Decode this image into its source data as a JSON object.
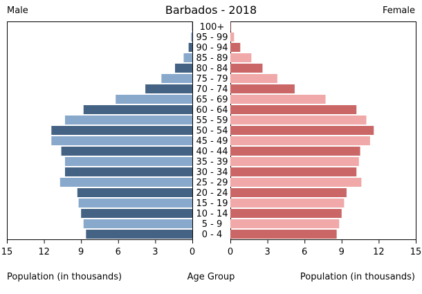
{
  "chart_data": {
    "type": "bar",
    "title": "Barbados - 2018",
    "left_label": "Male",
    "right_label": "Female",
    "xlabel_left": "Population (in thousands)",
    "xlabel_center": "Age Group",
    "xlabel_right": "Population (in thousands)",
    "xlim": [
      0,
      15
    ],
    "xticks": [
      0,
      3,
      6,
      9,
      12,
      15
    ],
    "categories": [
      "100+",
      "95 - 99",
      "90 - 94",
      "85 - 89",
      "80 - 84",
      "75 - 79",
      "70 - 74",
      "65 - 69",
      "60 - 64",
      "55 - 59",
      "50 - 54",
      "45 - 49",
      "40 - 44",
      "35 - 39",
      "30 - 34",
      "25 - 29",
      "20 - 24",
      "15 - 19",
      "10 - 14",
      "5 - 9",
      "0 - 4"
    ],
    "series": [
      {
        "name": "Male",
        "values": [
          0.02,
          0.1,
          0.3,
          0.7,
          1.4,
          2.5,
          3.8,
          6.2,
          8.8,
          10.3,
          11.4,
          11.4,
          10.6,
          10.3,
          10.3,
          10.7,
          9.3,
          9.2,
          9.0,
          8.8,
          8.6
        ]
      },
      {
        "name": "Female",
        "values": [
          0.03,
          0.3,
          0.8,
          1.7,
          2.6,
          3.8,
          5.2,
          7.7,
          10.2,
          11.0,
          11.6,
          11.3,
          10.5,
          10.4,
          10.2,
          10.6,
          9.4,
          9.2,
          9.0,
          8.8,
          8.6
        ]
      }
    ],
    "colors": {
      "male_dark": "#446384",
      "male_light": "#88a8cc",
      "female_dark": "#ca6666",
      "female_light": "#f0a8a8"
    }
  }
}
